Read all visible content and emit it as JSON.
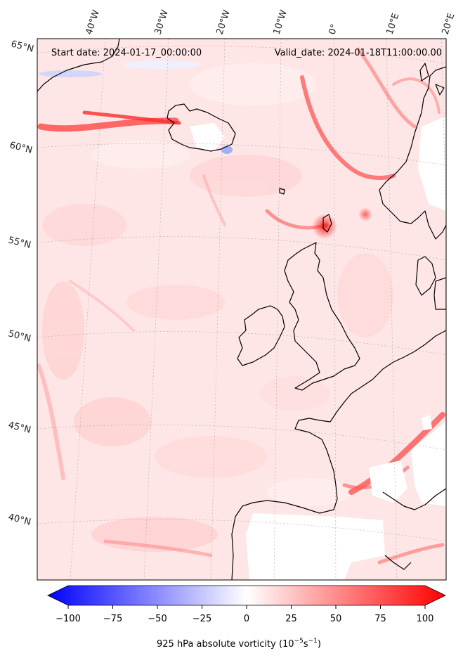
{
  "header": {
    "start_label": "Start date: 2024-01-17_00:00:00",
    "valid_label": "Valid_date: 2024-01-18T11:00:00.00"
  },
  "lon_labels": [
    "40°W",
    "30°W",
    "20°W",
    "10°W",
    "0°",
    "10°E",
    "20°E"
  ],
  "lat_labels": [
    "65°N",
    "60°N",
    "55°N",
    "50°N",
    "45°N",
    "40°N"
  ],
  "colorbar": {
    "ticks": [
      "−100",
      "−75",
      "−50",
      "−25",
      "0",
      "25",
      "50",
      "75",
      "100"
    ],
    "label": "925 hPa absolute vorticity (10",
    "unit_exp1": "−5",
    "unit_mid": "s",
    "unit_exp2": "−1",
    "unit_close": ")",
    "min_color": "#0000ff",
    "mid_color": "#ffffff",
    "max_color": "#ff0000"
  },
  "map": {
    "ocean_tint": "#ffe3e3",
    "coast_color": "#000000",
    "gridline_color": "#999999",
    "land_color": "#ffffff"
  }
}
